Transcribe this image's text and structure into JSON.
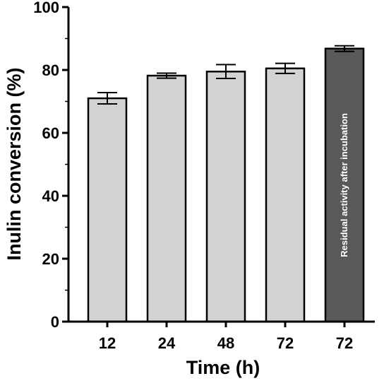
{
  "chart_data": {
    "type": "bar",
    "title": "",
    "xlabel": "Time (h)",
    "ylabel": "Inulin conversion (%)",
    "ylim": [
      0,
      100
    ],
    "yticks": [
      "0",
      "20",
      "40",
      "60",
      "80",
      "100"
    ],
    "grid": false,
    "categories": [
      "12",
      "24",
      "48",
      "72",
      "72"
    ],
    "values": [
      71.0,
      78.2,
      79.5,
      80.5,
      86.8
    ],
    "errors": [
      1.8,
      0.8,
      2.2,
      1.6,
      0.9
    ],
    "bar_colors": [
      "#d3d3d3",
      "#d3d3d3",
      "#d3d3d3",
      "#d3d3d3",
      "#595959"
    ],
    "annotation": "Residual activity after incubation"
  }
}
